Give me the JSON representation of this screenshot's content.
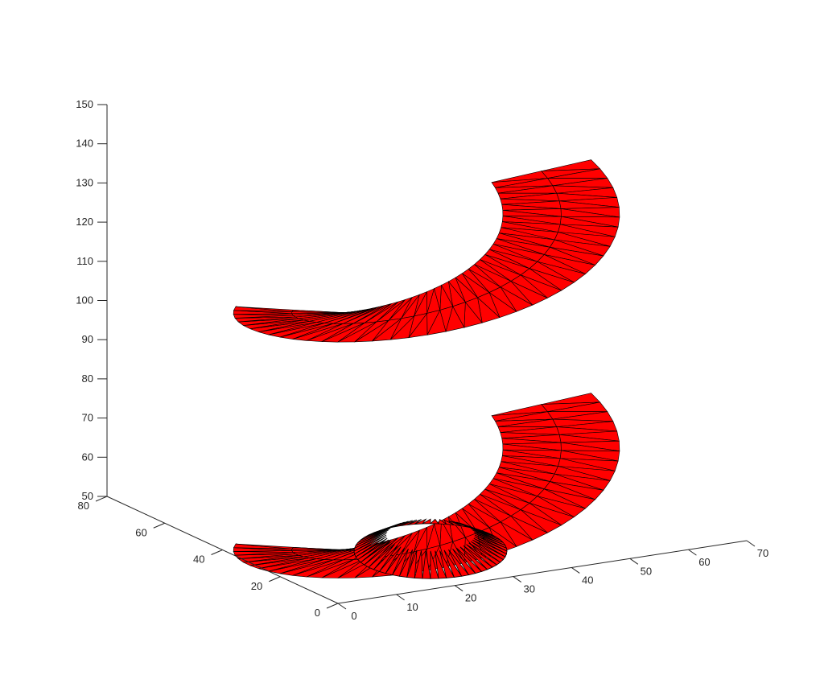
{
  "chart_data": {
    "type": "surface3d",
    "title": "",
    "xlabel": "",
    "ylabel": "",
    "zlabel": "",
    "xlim": [
      0,
      70
    ],
    "ylim": [
      0,
      80
    ],
    "zlim": [
      50,
      150
    ],
    "x_ticks": [
      "0",
      "10",
      "20",
      "30",
      "40",
      "50",
      "60",
      "70"
    ],
    "y_ticks": [
      "0",
      "20",
      "40",
      "60",
      "80"
    ],
    "z_ticks": [
      "50",
      "60",
      "70",
      "80",
      "90",
      "100",
      "110",
      "120",
      "130",
      "140",
      "150"
    ],
    "surface": {
      "description": "helical ribbon (two turns) with a flat spiral base, triangulated mesh",
      "z_range": [
        50,
        143
      ],
      "turns": 2,
      "face_color": "#ff0000",
      "edge_color": "#000000"
    },
    "grid": false,
    "legend": "none"
  }
}
